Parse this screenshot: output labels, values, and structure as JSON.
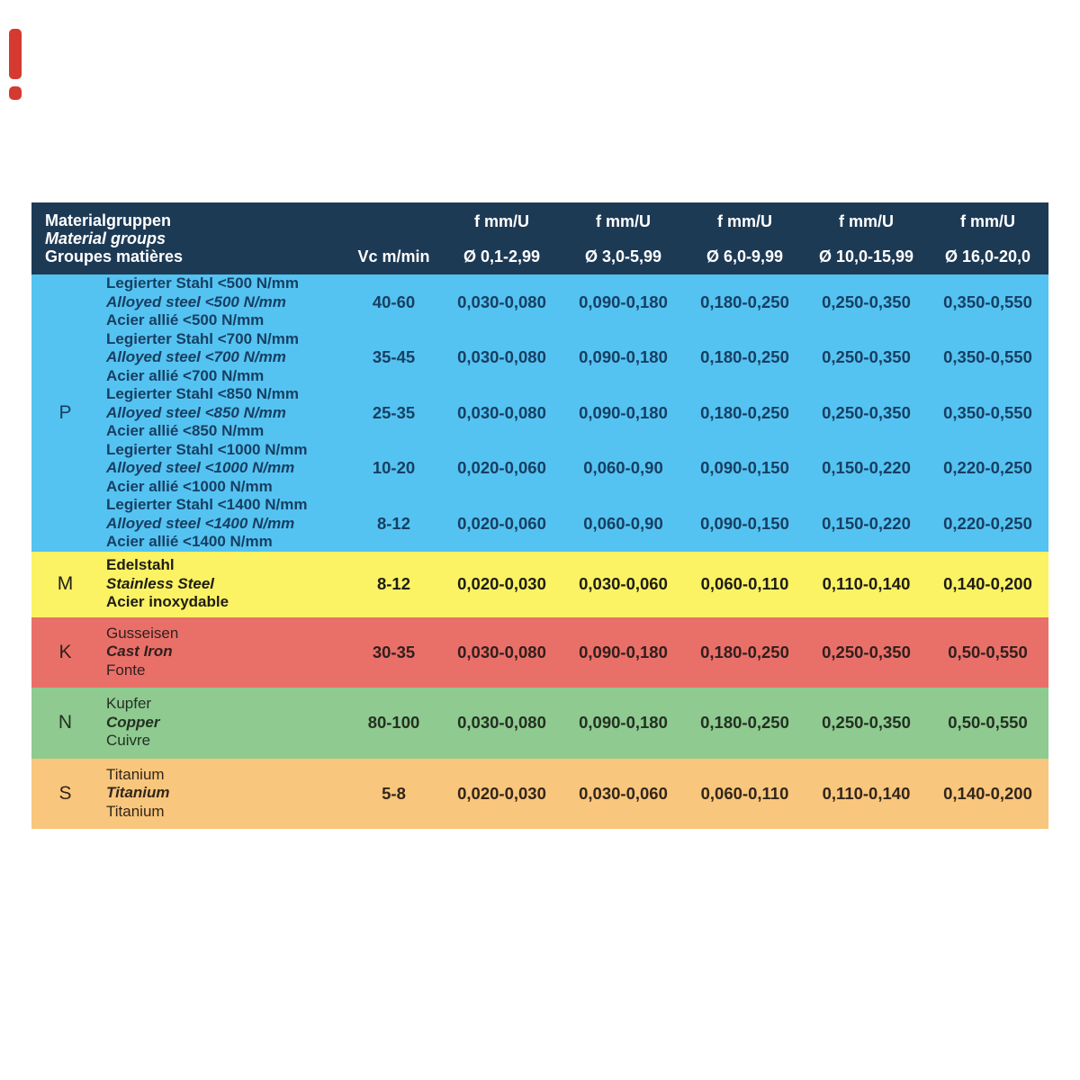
{
  "page": {
    "background": "#ffffff",
    "accent_mark_color": "#d43a2f"
  },
  "table": {
    "header": {
      "bg": "#1d3a55",
      "text_color": "#ffffff",
      "material_col": {
        "line1": "Materialgruppen",
        "line2": "Material groups",
        "line3": "Groupes matières"
      },
      "vc_label": "Vc m/min",
      "feed_cols": [
        {
          "top": "f mm/U",
          "bottom": "Ø 0,1-2,99"
        },
        {
          "top": "f mm/U",
          "bottom": "Ø 3,0-5,99"
        },
        {
          "top": "f mm/U",
          "bottom": "Ø 6,0-9,99"
        },
        {
          "top": "f mm/U",
          "bottom": "Ø 10,0-15,99"
        },
        {
          "top": "f mm/U",
          "bottom": "Ø 16,0-20,0"
        }
      ]
    },
    "sections": [
      {
        "letter": "P",
        "bg": "#55c3f1",
        "text_color": "#173f63",
        "rows": [
          {
            "name_de": "Legierter Stahl <500 N/mm",
            "name_en": "Alloyed steel <500 N/mm",
            "name_fr": "Acier allié <500 N/mm",
            "vc": "40-60",
            "feeds": [
              "0,030-0,080",
              "0,090-0,180",
              "0,180-0,250",
              "0,250-0,350",
              "0,350-0,550"
            ]
          },
          {
            "name_de": "Legierter Stahl <700 N/mm",
            "name_en": "Alloyed steel <700 N/mm",
            "name_fr": "Acier allié <700 N/mm",
            "vc": "35-45",
            "feeds": [
              "0,030-0,080",
              "0,090-0,180",
              "0,180-0,250",
              "0,250-0,350",
              "0,350-0,550"
            ]
          },
          {
            "name_de": "Legierter Stahl <850 N/mm",
            "name_en": "Alloyed steel <850 N/mm",
            "name_fr": "Acier allié <850 N/mm",
            "vc": "25-35",
            "feeds": [
              "0,030-0,080",
              "0,090-0,180",
              "0,180-0,250",
              "0,250-0,350",
              "0,350-0,550"
            ]
          },
          {
            "name_de": "Legierter Stahl <1000 N/mm",
            "name_en": "Alloyed steel <1000 N/mm",
            "name_fr": "Acier allié <1000 N/mm",
            "vc": "10-20",
            "feeds": [
              "0,020-0,060",
              "0,060-0,90",
              "0,090-0,150",
              "0,150-0,220",
              "0,220-0,250"
            ]
          },
          {
            "name_de": "Legierter Stahl <1400 N/mm",
            "name_en": "Alloyed steel <1400 N/mm",
            "name_fr": "Acier allié <1400 N/mm",
            "vc": "8-12",
            "feeds": [
              "0,020-0,060",
              "0,060-0,90",
              "0,090-0,150",
              "0,150-0,220",
              "0,220-0,250"
            ]
          }
        ]
      },
      {
        "letter": "M",
        "bg": "#fbf264",
        "text_color": "#1e1d15",
        "rows": [
          {
            "name_de": "Edelstahl",
            "name_en": "Stainless Steel",
            "name_fr": "Acier inoxydable",
            "vc": "8-12",
            "feeds": [
              "0,020-0,030",
              "0,030-0,060",
              "0,060-0,110",
              "0,110-0,140",
              "0,140-0,200"
            ]
          }
        ]
      },
      {
        "letter": "K",
        "bg": "#e97069",
        "text_color": "#301f1d",
        "rows": [
          {
            "name_de": "Gusseisen",
            "name_en": "Cast Iron",
            "name_fr": "Fonte",
            "vc": "30-35",
            "feeds": [
              "0,030-0,080",
              "0,090-0,180",
              "0,180-0,250",
              "0,250-0,350",
              "0,50-0,550"
            ]
          }
        ]
      },
      {
        "letter": "N",
        "bg": "#8fca90",
        "text_color": "#233122",
        "rows": [
          {
            "name_de": "Kupfer",
            "name_en": "Copper",
            "name_fr": "Cuivre",
            "vc": "80-100",
            "feeds": [
              "0,030-0,080",
              "0,090-0,180",
              "0,180-0,250",
              "0,250-0,350",
              "0,50-0,550"
            ]
          }
        ]
      },
      {
        "letter": "S",
        "bg": "#f8c67c",
        "text_color": "#33261a",
        "rows": [
          {
            "name_de": "Titanium",
            "name_en": "Titanium",
            "name_fr": "Titanium",
            "vc": "5-8",
            "feeds": [
              "0,020-0,030",
              "0,030-0,060",
              "0,060-0,110",
              "0,110-0,140",
              "0,140-0,200"
            ]
          }
        ]
      }
    ]
  }
}
